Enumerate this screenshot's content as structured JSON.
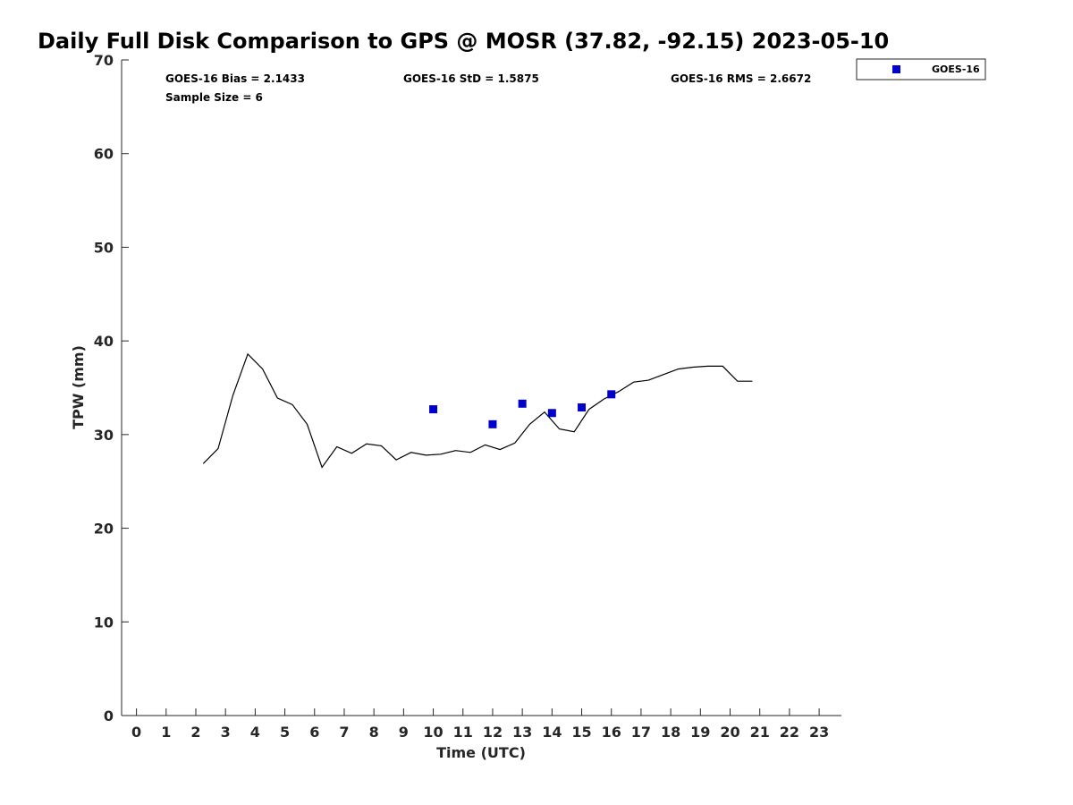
{
  "chart_data": {
    "type": "line",
    "title": "Daily Full Disk Comparison to GPS @ MOSR (37.82, -92.15) 2023-05-10",
    "xlabel": "Time (UTC)",
    "ylabel": "TPW (mm)",
    "xlim": [
      -0.5,
      23.75
    ],
    "ylim": [
      0,
      70
    ],
    "x_ticks": [
      0,
      1,
      2,
      3,
      4,
      5,
      6,
      7,
      8,
      9,
      10,
      11,
      12,
      13,
      14,
      15,
      16,
      17,
      18,
      19,
      20,
      21,
      22,
      23
    ],
    "y_ticks": [
      0,
      10,
      20,
      30,
      40,
      50,
      60,
      70
    ],
    "grid": false,
    "legend_position": "top-right-outside",
    "stats": {
      "bias": "GOES-16 Bias = 2.1433",
      "std": "GOES-16 StD = 1.5875",
      "rms": "GOES-16 RMS = 2.6672",
      "sample_size": "Sample Size = 6"
    },
    "series": [
      {
        "name": "",
        "kind": "line",
        "color": "#000000",
        "x": [
          2.25,
          2.75,
          3.25,
          3.75,
          4.25,
          4.75,
          5.25,
          5.75,
          6.25,
          6.75,
          7.25,
          7.75,
          8.25,
          8.75,
          9.25,
          9.75,
          10.25,
          10.75,
          11.25,
          11.75,
          12.25,
          12.75,
          13.25,
          13.75,
          14.25,
          14.75,
          15.25,
          15.75,
          16.25,
          16.75,
          17.25,
          17.75,
          18.25,
          18.75,
          19.25,
          19.75,
          20.25,
          20.75
        ],
        "y": [
          26.9,
          28.5,
          34.2,
          38.6,
          37.0,
          33.9,
          33.2,
          31.1,
          26.5,
          28.7,
          28.0,
          29.0,
          28.8,
          27.3,
          28.1,
          27.8,
          27.9,
          28.3,
          28.1,
          28.9,
          28.4,
          29.1,
          31.1,
          32.4,
          30.6,
          30.3,
          32.7,
          33.8,
          34.6,
          35.6,
          35.8,
          36.4,
          37.0,
          37.2,
          37.3,
          37.3,
          35.7,
          35.7
        ]
      },
      {
        "name": "GOES-16",
        "kind": "scatter",
        "marker": "square",
        "color": "#0000cc",
        "x": [
          10.0,
          12.0,
          13.0,
          14.0,
          15.0,
          16.0
        ],
        "y": [
          32.7,
          31.1,
          33.3,
          32.3,
          32.9,
          34.3
        ]
      }
    ]
  }
}
